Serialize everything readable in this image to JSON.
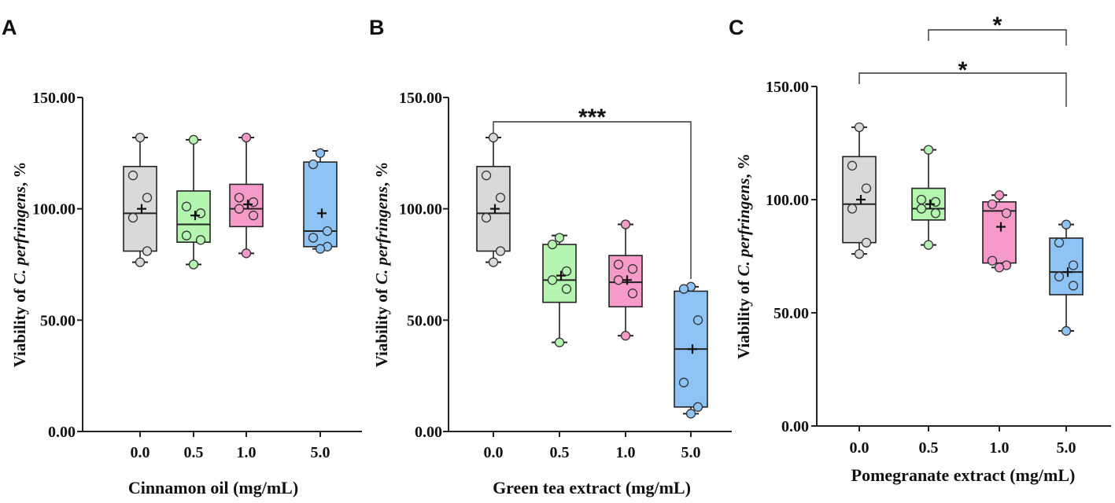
{
  "chart_data": [
    {
      "type": "box",
      "panel": "A",
      "title": "",
      "xlabel": "Cinnamon oil (mg/mL)",
      "ylabel_prefix": "Viability of ",
      "ylabel_italic": "C. perfringens",
      "ylabel_suffix": ", %",
      "ylim": [
        0,
        150
      ],
      "y_ticks": [
        {
          "value": 0,
          "label": "0.00"
        },
        {
          "value": 50,
          "label": "50.00"
        },
        {
          "value": 100,
          "label": "100.00"
        },
        {
          "value": 150,
          "label": "150.00"
        }
      ],
      "categories": [
        "0.0",
        "0.5",
        "1.0",
        "5.0"
      ],
      "boxes": [
        {
          "color": "#d9d9d9",
          "min": 76,
          "q1": 81,
          "median": 98,
          "q3": 119,
          "max": 132,
          "mean": 100,
          "points": [
            132,
            115,
            105,
            96,
            81,
            76
          ]
        },
        {
          "color": "#b4f5b0",
          "min": 75,
          "q1": 85,
          "median": 93,
          "q3": 108,
          "max": 131,
          "mean": 97,
          "points": [
            131,
            101,
            98,
            88,
            86,
            75
          ]
        },
        {
          "color": "#f59ac9",
          "min": 80,
          "q1": 92,
          "median": 100,
          "q3": 111,
          "max": 132,
          "mean": 102,
          "points": [
            132,
            105,
            103,
            100,
            97,
            80
          ]
        },
        {
          "color": "#8ec3f5",
          "min": 82,
          "q1": 83,
          "median": 90,
          "q3": 121,
          "max": 126,
          "mean": 98,
          "points": [
            125,
            120,
            90,
            87,
            83,
            82
          ]
        }
      ],
      "significance": []
    },
    {
      "type": "box",
      "panel": "B",
      "title": "",
      "xlabel": "Green tea extract (mg/mL)",
      "ylabel_prefix": "Viability of ",
      "ylabel_italic": "C. perfringens",
      "ylabel_suffix": ", %",
      "ylim": [
        0,
        150
      ],
      "y_ticks": [
        {
          "value": 0,
          "label": "0.00"
        },
        {
          "value": 50,
          "label": "50.00"
        },
        {
          "value": 100,
          "label": "100.00"
        },
        {
          "value": 150,
          "label": "150.00"
        }
      ],
      "categories": [
        "0.0",
        "0.5",
        "1.0",
        "5.0"
      ],
      "boxes": [
        {
          "color": "#d9d9d9",
          "min": 76,
          "q1": 81,
          "median": 98,
          "q3": 119,
          "max": 132,
          "mean": 100,
          "points": [
            132,
            115,
            105,
            96,
            81,
            76
          ]
        },
        {
          "color": "#b4f5b0",
          "min": 40,
          "q1": 58,
          "median": 68,
          "q3": 84,
          "max": 88,
          "mean": 70,
          "points": [
            87,
            84,
            72,
            68,
            64,
            40
          ]
        },
        {
          "color": "#f59ac9",
          "min": 43,
          "q1": 56,
          "median": 67,
          "q3": 79,
          "max": 93,
          "mean": 68,
          "points": [
            93,
            75,
            73,
            68,
            62,
            43
          ]
        },
        {
          "color": "#8ec3f5",
          "min": 8,
          "q1": 11,
          "median": 37,
          "q3": 63,
          "max": 65,
          "mean": 37,
          "points": [
            65,
            64,
            50,
            22,
            11,
            8
          ]
        }
      ],
      "significance": [
        {
          "from": "0.0",
          "to": "5.0",
          "label": "***"
        }
      ]
    },
    {
      "type": "box",
      "panel": "C",
      "title": "",
      "xlabel": "Pomegranate extract (mg/mL)",
      "ylabel_prefix": "Viability of ",
      "ylabel_italic": "C. perfringens",
      "ylabel_suffix": ", %",
      "ylim": [
        0,
        150
      ],
      "y_ticks": [
        {
          "value": 0,
          "label": "0.00"
        },
        {
          "value": 50,
          "label": "50.00"
        },
        {
          "value": 100,
          "label": "100.00"
        },
        {
          "value": 150,
          "label": "150.00"
        }
      ],
      "categories": [
        "0.0",
        "0.5",
        "1.0",
        "5.0"
      ],
      "boxes": [
        {
          "color": "#d9d9d9",
          "min": 76,
          "q1": 81,
          "median": 98,
          "q3": 119,
          "max": 132,
          "mean": 100,
          "points": [
            132,
            115,
            105,
            96,
            81,
            76
          ]
        },
        {
          "color": "#b4f5b0",
          "min": 80,
          "q1": 91,
          "median": 96,
          "q3": 105,
          "max": 122,
          "mean": 98,
          "points": [
            122,
            100,
            99,
            96,
            94,
            80
          ]
        },
        {
          "color": "#f59ac9",
          "min": 70,
          "q1": 72,
          "median": 95,
          "q3": 99,
          "max": 102,
          "mean": 88,
          "points": [
            102,
            98,
            94,
            73,
            71,
            70
          ]
        },
        {
          "color": "#8ec3f5",
          "min": 42,
          "q1": 58,
          "median": 68,
          "q3": 83,
          "max": 89,
          "mean": 68,
          "points": [
            89,
            81,
            71,
            66,
            62,
            42
          ]
        }
      ],
      "significance": [
        {
          "from": "0.5",
          "to": "5.0",
          "label": "*"
        },
        {
          "from": "0.0",
          "to": "5.0",
          "label": "*"
        }
      ]
    }
  ]
}
